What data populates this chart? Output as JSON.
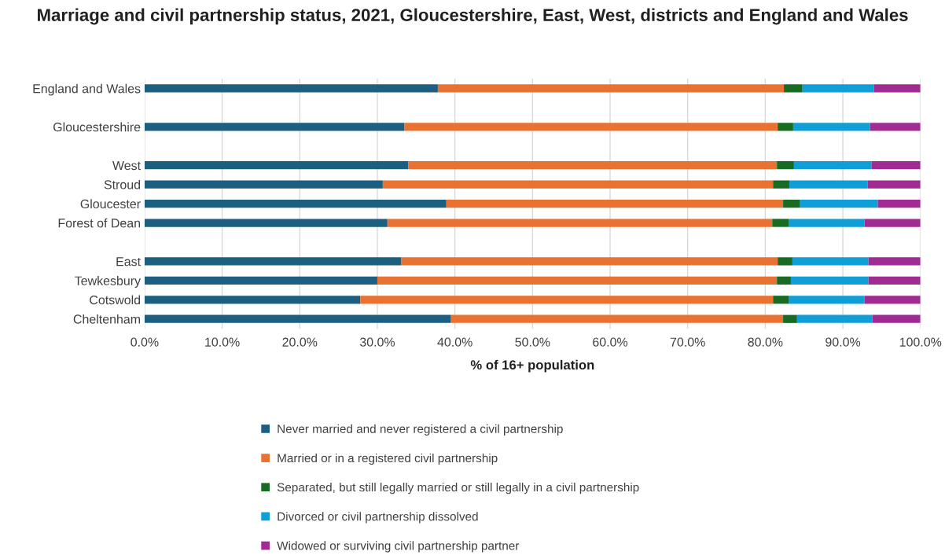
{
  "chart_data": {
    "type": "bar",
    "orientation": "horizontal",
    "stacked": true,
    "title": "Marriage and civil partnership status, 2021, Gloucestershire, East, West, districts and England and Wales",
    "xlabel": "% of 16+ population",
    "categories": [
      "England and Wales",
      null,
      "Gloucestershire",
      null,
      "West",
      "Stroud",
      "Gloucester",
      "Forest of Dean",
      null,
      "East",
      "Tewkesbury",
      "Cotswold",
      "Cheltenham"
    ],
    "series": [
      {
        "name": "Never married and never registered a civil partnership",
        "color": "#1d5f80",
        "values": [
          37.8,
          null,
          33.5,
          null,
          34.0,
          30.7,
          38.9,
          31.3,
          null,
          33.1,
          30.0,
          27.8,
          39.5
        ]
      },
      {
        "name": "Married or in a registered civil partnership",
        "color": "#e97132",
        "values": [
          44.6,
          null,
          48.1,
          null,
          47.5,
          50.3,
          43.4,
          49.6,
          null,
          48.5,
          51.5,
          53.2,
          42.8
        ]
      },
      {
        "name": "Separated, but still legally married or still legally in a civil partnership",
        "color": "#196b24",
        "values": [
          2.4,
          null,
          2.0,
          null,
          2.2,
          2.1,
          2.2,
          2.1,
          null,
          1.9,
          1.8,
          2.0,
          1.8
        ]
      },
      {
        "name": "Divorced or civil partnership dissolved",
        "color": "#0f9ed5",
        "values": [
          9.2,
          null,
          9.9,
          null,
          10.0,
          10.1,
          10.0,
          9.8,
          null,
          9.8,
          10.0,
          9.8,
          9.7
        ]
      },
      {
        "name": "Widowed or surviving civil partnership partner",
        "color": "#a02b93",
        "values": [
          6.0,
          null,
          6.5,
          null,
          6.3,
          6.8,
          5.5,
          7.2,
          null,
          6.7,
          6.7,
          7.2,
          6.2
        ]
      }
    ],
    "xlim": [
      0,
      100
    ],
    "xticks": [
      {
        "value": 0,
        "label": "0.0%"
      },
      {
        "value": 10,
        "label": "10.0%"
      },
      {
        "value": 20,
        "label": "20.0%"
      },
      {
        "value": 30,
        "label": "30.0%"
      },
      {
        "value": 40,
        "label": "40.0%"
      },
      {
        "value": 50,
        "label": "50.0%"
      },
      {
        "value": 60,
        "label": "60.0%"
      },
      {
        "value": 70,
        "label": "70.0%"
      },
      {
        "value": 80,
        "label": "80.0%"
      },
      {
        "value": 90,
        "label": "90.0%"
      },
      {
        "value": 100,
        "label": "100.0%"
      }
    ],
    "grid": "x",
    "legend": "bottom"
  }
}
